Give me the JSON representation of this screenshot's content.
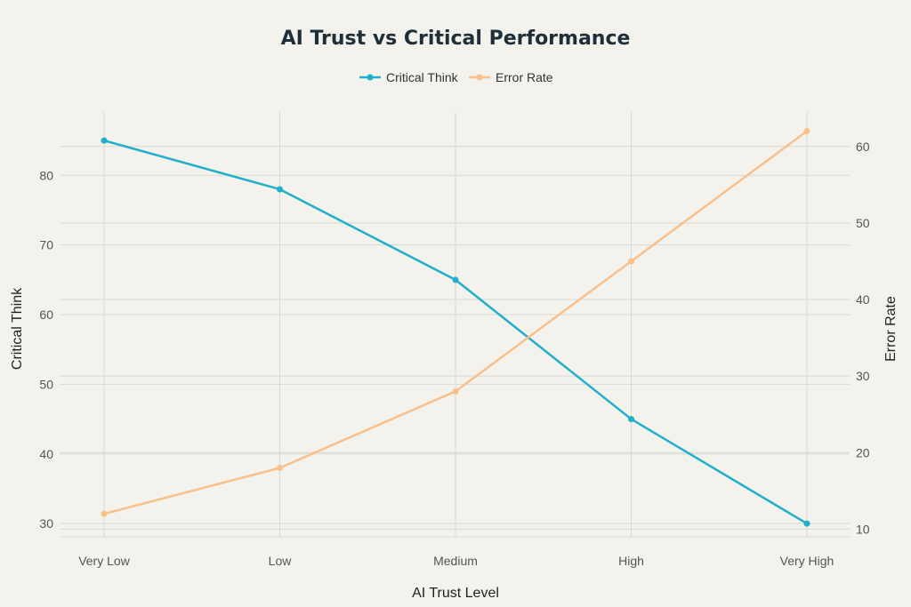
{
  "chart_data": {
    "type": "line",
    "title": "AI Trust vs Critical Performance",
    "xlabel": "AI Trust Level",
    "ylabel": "Critical Think",
    "y2label": "Error Rate",
    "categories": [
      "Very Low",
      "Low",
      "Medium",
      "High",
      "Very High"
    ],
    "series": [
      {
        "name": "Critical Think",
        "axis": "left",
        "color": "#21b0cb",
        "values": [
          85,
          78,
          65,
          45,
          30
        ]
      },
      {
        "name": "Error Rate",
        "axis": "right",
        "color": "#f9c08b",
        "values": [
          12,
          18,
          28,
          45,
          62
        ]
      }
    ],
    "y_left": {
      "ylim": [
        28.1,
        89.1
      ],
      "ticks": [
        30,
        40,
        50,
        60,
        70,
        80
      ]
    },
    "y_right": {
      "ylim": [
        9,
        64.5
      ],
      "ticks": [
        10,
        20,
        30,
        40,
        50,
        60
      ]
    },
    "grid": true,
    "legend_position": "top-center"
  }
}
